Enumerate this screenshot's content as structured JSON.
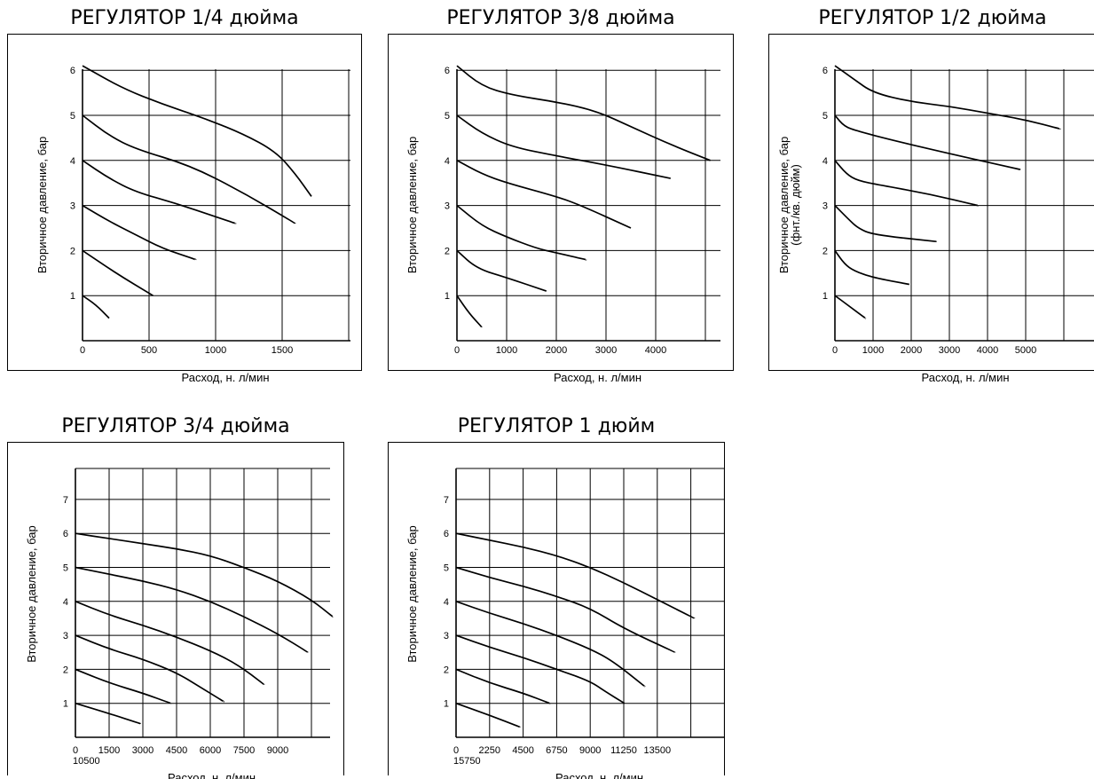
{
  "chart_data": [
    {
      "type": "line",
      "title": "РЕГУЛЯТОР 1/4 дюйма",
      "xlabel": "Расход, н. л/мин",
      "ylabel": "Вторичное давление, бар",
      "xticks": [
        "0",
        "500",
        "1000",
        "1500"
      ],
      "yticks": [
        "1",
        "2",
        "3",
        "4",
        "5",
        "6"
      ],
      "xlim": [
        0,
        2000
      ],
      "ylim": [
        0,
        6.1
      ],
      "grid": true,
      "series": [
        {
          "x": [
            0,
            100,
            200
          ],
          "y": [
            1.0,
            0.8,
            0.5
          ]
        },
        {
          "x": [
            0,
            250,
            530
          ],
          "y": [
            2.0,
            1.5,
            1.0
          ]
        },
        {
          "x": [
            0,
            200,
            400,
            600,
            850
          ],
          "y": [
            3.0,
            2.65,
            2.35,
            2.05,
            1.8
          ]
        },
        {
          "x": [
            0,
            200,
            400,
            700,
            1000,
            1150
          ],
          "y": [
            4.0,
            3.6,
            3.3,
            3.05,
            2.75,
            2.6
          ]
        },
        {
          "x": [
            0,
            200,
            400,
            800,
            1200,
            1600
          ],
          "y": [
            5.0,
            4.55,
            4.25,
            3.9,
            3.3,
            2.6
          ]
        },
        {
          "x": [
            0,
            300,
            600,
            900,
            1200,
            1450,
            1600,
            1720
          ],
          "y": [
            6.1,
            5.6,
            5.25,
            4.95,
            4.6,
            4.2,
            3.7,
            3.2
          ]
        }
      ]
    },
    {
      "type": "line",
      "title": "РЕГУЛЯТОР 3/8 дюйма",
      "xlabel": "Расход, н. л/мин",
      "ylabel": "Вторичное давление, бар",
      "xticks": [
        "0",
        "1000",
        "2000",
        "3000",
        "4000"
      ],
      "yticks": [
        "1",
        "2",
        "3",
        "4",
        "5",
        "6"
      ],
      "xlim": [
        0,
        5500
      ],
      "ylim": [
        0,
        6.1
      ],
      "grid": true,
      "series": [
        {
          "x": [
            0,
            250,
            500
          ],
          "y": [
            1.0,
            0.6,
            0.3
          ]
        },
        {
          "x": [
            0,
            400,
            1000,
            1800
          ],
          "y": [
            2.0,
            1.6,
            1.4,
            1.1
          ]
        },
        {
          "x": [
            0,
            500,
            1000,
            1600,
            2000,
            2600
          ],
          "y": [
            3.0,
            2.55,
            2.3,
            2.05,
            1.95,
            1.8
          ]
        },
        {
          "x": [
            0,
            500,
            1000,
            2000,
            2500,
            3500
          ],
          "y": [
            4.0,
            3.7,
            3.5,
            3.2,
            3.0,
            2.5
          ]
        },
        {
          "x": [
            0,
            500,
            1100,
            2000,
            3000,
            4300
          ],
          "y": [
            5.0,
            4.6,
            4.3,
            4.1,
            3.9,
            3.6
          ]
        },
        {
          "x": [
            0,
            500,
            1100,
            2000,
            2800,
            3500,
            4300,
            5100
          ],
          "y": [
            6.1,
            5.65,
            5.45,
            5.3,
            5.1,
            4.75,
            4.35,
            4.0
          ]
        }
      ]
    },
    {
      "type": "line",
      "title": "РЕГУЛЯТОР 1/2 дюйма",
      "xlabel": "Расход, н. л/мин",
      "ylabel": "Вторичное давление, бар",
      "ylabel2": "(фнт./кв. дюйм)",
      "xticks": [
        "0",
        "1000",
        "2000",
        "3000",
        "4000",
        "5000"
      ],
      "yticks": [
        "1",
        "2",
        "3",
        "4",
        "5",
        "6"
      ],
      "xlim": [
        0,
        6000
      ],
      "ylim": [
        0,
        6.1
      ],
      "grid": true,
      "series": [
        {
          "x": [
            0,
            400,
            800
          ],
          "y": [
            1.0,
            0.75,
            0.5
          ]
        },
        {
          "x": [
            0,
            250,
            500,
            1000,
            1950
          ],
          "y": [
            2.0,
            1.7,
            1.55,
            1.4,
            1.25
          ]
        },
        {
          "x": [
            0,
            350,
            600,
            1000,
            2650
          ],
          "y": [
            3.0,
            2.7,
            2.5,
            2.35,
            2.2
          ]
        },
        {
          "x": [
            0,
            300,
            600,
            1200,
            2500,
            3750
          ],
          "y": [
            4.0,
            3.7,
            3.55,
            3.45,
            3.25,
            3.0
          ]
        },
        {
          "x": [
            0,
            250,
            600,
            1500,
            3000,
            4850
          ],
          "y": [
            5.0,
            4.75,
            4.65,
            4.45,
            4.15,
            3.8
          ]
        },
        {
          "x": [
            0,
            500,
            1000,
            2000,
            3000,
            4000,
            5000,
            5900
          ],
          "y": [
            6.1,
            5.8,
            5.5,
            5.3,
            5.2,
            5.05,
            4.9,
            4.7
          ]
        }
      ]
    },
    {
      "type": "line",
      "title": "РЕГУЛЯТОР 3/4 дюйма",
      "xlabel": "Расход, н. л/мин",
      "ylabel": "Вторичное давление, бар",
      "xticks": [
        "0",
        "1500",
        "3000",
        "4500",
        "6000",
        "7500",
        "9000"
      ],
      "xticks_extra": "10500",
      "yticks": [
        "1",
        "2",
        "3",
        "4",
        "5",
        "6",
        "7"
      ],
      "xlim": [
        0,
        12000
      ],
      "ylim": [
        0,
        8
      ],
      "grid": true,
      "series": [
        {
          "x": [
            0,
            1500,
            2900
          ],
          "y": [
            1.0,
            0.7,
            0.4
          ]
        },
        {
          "x": [
            0,
            1500,
            3000,
            4250
          ],
          "y": [
            2.0,
            1.6,
            1.3,
            1.0
          ]
        },
        {
          "x": [
            0,
            1500,
            3000,
            4500,
            5500,
            6600
          ],
          "y": [
            3.0,
            2.6,
            2.3,
            1.9,
            1.5,
            1.05
          ]
        },
        {
          "x": [
            0,
            1500,
            3000,
            4500,
            6000,
            7200,
            8400
          ],
          "y": [
            4.0,
            3.6,
            3.3,
            2.95,
            2.55,
            2.15,
            1.55
          ]
        },
        {
          "x": [
            0,
            1500,
            3000,
            4500,
            6000,
            7500,
            9000,
            10350
          ],
          "y": [
            5.0,
            4.8,
            4.6,
            4.35,
            4.0,
            3.55,
            3.05,
            2.5
          ]
        },
        {
          "x": [
            0,
            1500,
            3000,
            4500,
            6000,
            7500,
            9000,
            10500,
            11450
          ],
          "y": [
            6.0,
            5.85,
            5.7,
            5.55,
            5.35,
            5.0,
            4.6,
            4.05,
            3.55
          ]
        }
      ]
    },
    {
      "type": "line",
      "title": "РЕГУЛЯТОР 1 дюйм",
      "xlabel": "Расход, н. л/мин",
      "ylabel": "Вторичное давление, бар",
      "xticks": [
        "0",
        "2250",
        "4500",
        "6750",
        "9000",
        "11250",
        "13500"
      ],
      "xticks_extra": "15750",
      "yticks": [
        "1",
        "2",
        "3",
        "4",
        "5",
        "6",
        "7"
      ],
      "xlim": [
        0,
        18000
      ],
      "ylim": [
        0,
        8
      ],
      "grid": true,
      "series": [
        {
          "x": [
            0,
            2250,
            4300
          ],
          "y": [
            1.0,
            0.65,
            0.3
          ]
        },
        {
          "x": [
            0,
            2250,
            4500,
            6300
          ],
          "y": [
            2.0,
            1.6,
            1.3,
            1.0
          ]
        },
        {
          "x": [
            0,
            2250,
            4500,
            6750,
            9000,
            10000,
            11300
          ],
          "y": [
            3.0,
            2.65,
            2.35,
            2.0,
            1.65,
            1.35,
            1.0
          ]
        },
        {
          "x": [
            0,
            2250,
            4500,
            6750,
            9000,
            10500,
            12650
          ],
          "y": [
            4.0,
            3.65,
            3.35,
            3.0,
            2.6,
            2.25,
            1.5
          ]
        },
        {
          "x": [
            0,
            2250,
            4500,
            6750,
            9000,
            11250,
            14700
          ],
          "y": [
            5.0,
            4.7,
            4.45,
            4.15,
            3.8,
            3.2,
            2.5
          ]
        },
        {
          "x": [
            0,
            2250,
            4500,
            6750,
            9000,
            11250,
            13500,
            16000
          ],
          "y": [
            6.0,
            5.8,
            5.6,
            5.35,
            5.0,
            4.55,
            4.05,
            3.5
          ]
        }
      ]
    }
  ]
}
